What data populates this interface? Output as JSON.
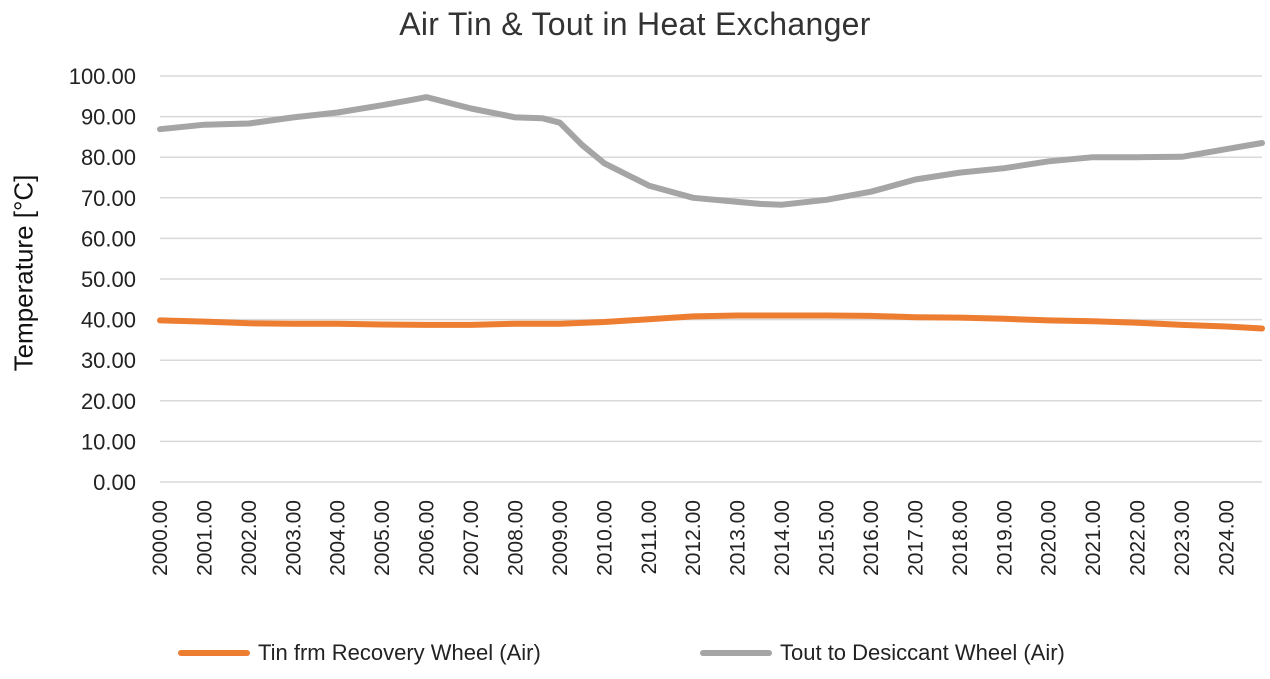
{
  "chart_data": {
    "type": "line",
    "title": "Air Tin & Tout in Heat Exchanger",
    "xlabel": "",
    "ylabel": "Temperature  [°C]",
    "ylim": [
      0,
      100
    ],
    "xlim": [
      2000,
      2024.8
    ],
    "yticks": [
      "0.00",
      "10.00",
      "20.00",
      "30.00",
      "40.00",
      "50.00",
      "60.00",
      "70.00",
      "80.00",
      "90.00",
      "100.00"
    ],
    "ytick_values": [
      0,
      10,
      20,
      30,
      40,
      50,
      60,
      70,
      80,
      90,
      100
    ],
    "xticks": [
      "2000.00",
      "2001.00",
      "2002.00",
      "2003.00",
      "2004.00",
      "2005.00",
      "2006.00",
      "2007.00",
      "2008.00",
      "2009.00",
      "2010.00",
      "2011.00",
      "2012.00",
      "2013.00",
      "2014.00",
      "2015.00",
      "2016.00",
      "2017.00",
      "2018.00",
      "2019.00",
      "2020.00",
      "2021.00",
      "2022.00",
      "2023.00",
      "2024.00"
    ],
    "xtick_values": [
      2000,
      2001,
      2002,
      2003,
      2004,
      2005,
      2006,
      2007,
      2008,
      2009,
      2010,
      2011,
      2012,
      2013,
      2014,
      2015,
      2016,
      2017,
      2018,
      2019,
      2020,
      2021,
      2022,
      2023,
      2024
    ],
    "grid": true,
    "legend_position": "bottom",
    "series": [
      {
        "name": "Tin frm Recovery Wheel (Air)",
        "color": "#ED7D31",
        "x": [
          2000,
          2001,
          2002,
          2003,
          2004,
          2005,
          2006,
          2007,
          2008,
          2009,
          2010,
          2011,
          2012,
          2013,
          2014,
          2015,
          2016,
          2017,
          2018,
          2019,
          2020,
          2021,
          2022,
          2023,
          2024,
          2024.8
        ],
        "y": [
          39.8,
          39.5,
          39.1,
          39.0,
          39.0,
          38.8,
          38.7,
          38.7,
          39.0,
          39.0,
          39.4,
          40.1,
          40.8,
          41.0,
          41.0,
          41.0,
          40.9,
          40.6,
          40.5,
          40.2,
          39.8,
          39.6,
          39.2,
          38.7,
          38.3,
          37.8
        ]
      },
      {
        "name": "Tout to Desiccant Wheel (Air)",
        "color": "#A5A5A5",
        "x": [
          2000,
          2001,
          2002,
          2003,
          2004,
          2005,
          2005.6,
          2006,
          2007,
          2008,
          2008.6,
          2009,
          2009.5,
          2010,
          2011,
          2012,
          2013,
          2013.5,
          2014,
          2015,
          2016,
          2017,
          2018,
          2019,
          2020,
          2021,
          2022,
          2023,
          2024,
          2024.8
        ],
        "y": [
          86.9,
          88.0,
          88.3,
          89.8,
          91.0,
          92.8,
          94.0,
          94.8,
          92.0,
          89.8,
          89.6,
          88.5,
          83.0,
          78.5,
          73.0,
          70.0,
          69.0,
          68.5,
          68.3,
          69.5,
          71.5,
          74.5,
          76.2,
          77.3,
          79.0,
          80.0,
          80.0,
          80.1,
          82.0,
          83.5
        ]
      }
    ]
  }
}
